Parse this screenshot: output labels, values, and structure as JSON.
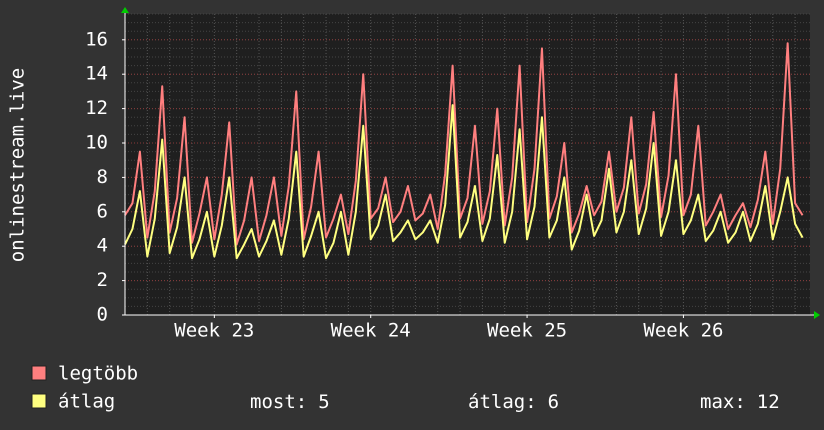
{
  "chart_data": {
    "type": "line",
    "y_label": "onlinestream.live",
    "ylim": [
      0,
      17.5
    ],
    "yticks": [
      0,
      2,
      4,
      6,
      8,
      10,
      12,
      14,
      16
    ],
    "xlim": [
      0,
      92
    ],
    "xticks": [
      {
        "value": 12,
        "label": "Week 23"
      },
      {
        "value": 33,
        "label": "Week 24"
      },
      {
        "value": 54,
        "label": "Week 25"
      },
      {
        "value": 75,
        "label": "Week 26"
      }
    ],
    "grid": true,
    "series": [
      {
        "name": "legtöbb",
        "color": "#ff7f7f",
        "values": [
          5.8,
          6.5,
          9.5,
          4.5,
          7.2,
          13.3,
          4.8,
          6.8,
          11.5,
          4.2,
          5.9,
          8.0,
          4.4,
          7.0,
          11.2,
          4.1,
          5.5,
          8.0,
          4.3,
          5.8,
          8.0,
          4.6,
          7.5,
          13.0,
          4.4,
          6.3,
          9.5,
          4.5,
          5.6,
          7.0,
          4.7,
          7.8,
          14.0,
          5.6,
          6.2,
          8.0,
          5.4,
          6.0,
          7.5,
          5.5,
          5.9,
          7.0,
          5.0,
          8.2,
          14.5,
          5.6,
          6.8,
          11.0,
          5.3,
          7.2,
          12.0,
          5.2,
          8.0,
          14.5,
          5.4,
          8.5,
          15.5,
          5.6,
          6.9,
          10.0,
          4.8,
          5.9,
          7.5,
          5.8,
          6.6,
          9.5,
          6.0,
          7.4,
          11.5,
          5.9,
          7.6,
          11.8,
          5.7,
          8.1,
          14.0,
          5.8,
          7.0,
          11.0,
          5.2,
          6.0,
          7.0,
          5.0,
          5.8,
          6.5,
          5.1,
          6.7,
          9.5,
          5.3,
          8.5,
          15.8,
          6.5,
          5.8
        ]
      },
      {
        "name": "átlag",
        "color": "#ffff80",
        "values": [
          4.1,
          5.0,
          7.2,
          3.4,
          5.6,
          10.2,
          3.6,
          5.1,
          8.0,
          3.3,
          4.4,
          6.0,
          3.4,
          5.2,
          8.0,
          3.3,
          4.1,
          5.0,
          3.4,
          4.3,
          5.5,
          3.5,
          5.6,
          9.5,
          3.4,
          4.6,
          6.0,
          3.3,
          4.2,
          6.0,
          3.5,
          6.0,
          11.0,
          4.4,
          5.2,
          7.0,
          4.3,
          4.8,
          5.5,
          4.4,
          4.8,
          5.5,
          4.2,
          6.4,
          12.2,
          4.5,
          5.4,
          7.5,
          4.3,
          5.6,
          9.3,
          4.2,
          6.0,
          10.8,
          4.4,
          6.3,
          11.5,
          4.5,
          5.5,
          8.0,
          3.8,
          4.9,
          7.0,
          4.6,
          5.5,
          8.5,
          4.8,
          6.0,
          9.0,
          4.7,
          6.2,
          10.0,
          4.6,
          6.0,
          9.0,
          4.7,
          5.5,
          7.0,
          4.3,
          4.9,
          6.0,
          4.2,
          4.8,
          6.0,
          4.3,
          5.3,
          7.5,
          4.4,
          6.0,
          8.0,
          5.3,
          4.5
        ]
      }
    ],
    "stats": [
      {
        "label": "most:",
        "value": 5
      },
      {
        "label": "átlag:",
        "value": 6
      },
      {
        "label": "max:",
        "value": 12
      }
    ]
  }
}
